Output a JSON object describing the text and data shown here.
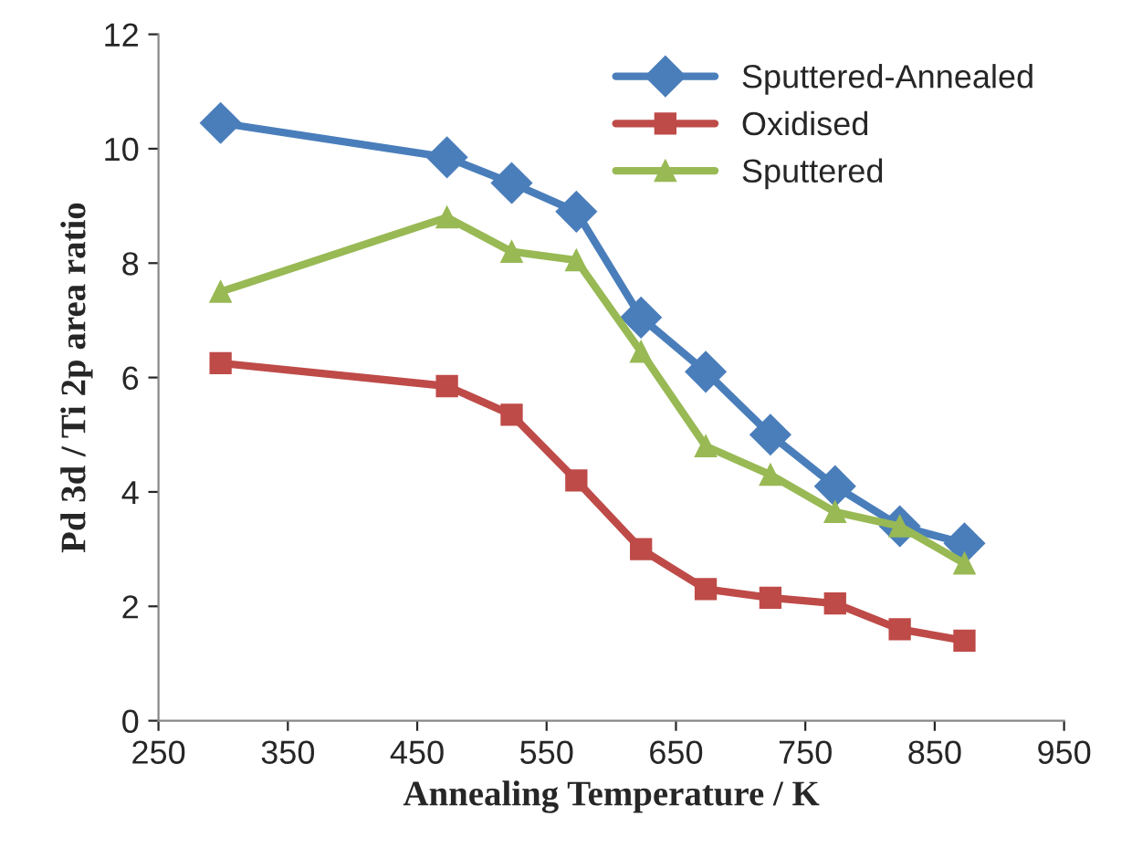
{
  "chart_data": {
    "type": "line",
    "xlabel": "Annealing Temperature / K",
    "ylabel": "Pd 3d / Ti 2p area ratio",
    "x": [
      298,
      473,
      523,
      573,
      623,
      673,
      723,
      773,
      823,
      873
    ],
    "series": [
      {
        "name": "Sputtered-Annealed",
        "color": "#4a7ebb",
        "marker": "diamond",
        "values": [
          10.45,
          9.85,
          9.4,
          8.9,
          7.05,
          6.1,
          5.0,
          4.1,
          3.4,
          3.1
        ]
      },
      {
        "name": "Oxidised",
        "color": "#be4b48",
        "marker": "square",
        "values": [
          6.25,
          5.85,
          5.35,
          4.2,
          3.0,
          2.3,
          2.15,
          2.05,
          1.6,
          1.4
        ]
      },
      {
        "name": "Sputtered",
        "color": "#98b954",
        "marker": "triangle",
        "values": [
          7.5,
          8.8,
          8.2,
          8.05,
          6.45,
          4.8,
          4.3,
          3.65,
          3.4,
          2.75
        ]
      }
    ],
    "xlim": [
      250,
      950
    ],
    "xticks": [
      250,
      350,
      450,
      550,
      650,
      750,
      850,
      950
    ],
    "ylim": [
      0,
      12
    ],
    "yticks": [
      0,
      2,
      4,
      6,
      8,
      10,
      12
    ],
    "grid": false,
    "legend": "top right",
    "line_style": "solid"
  }
}
